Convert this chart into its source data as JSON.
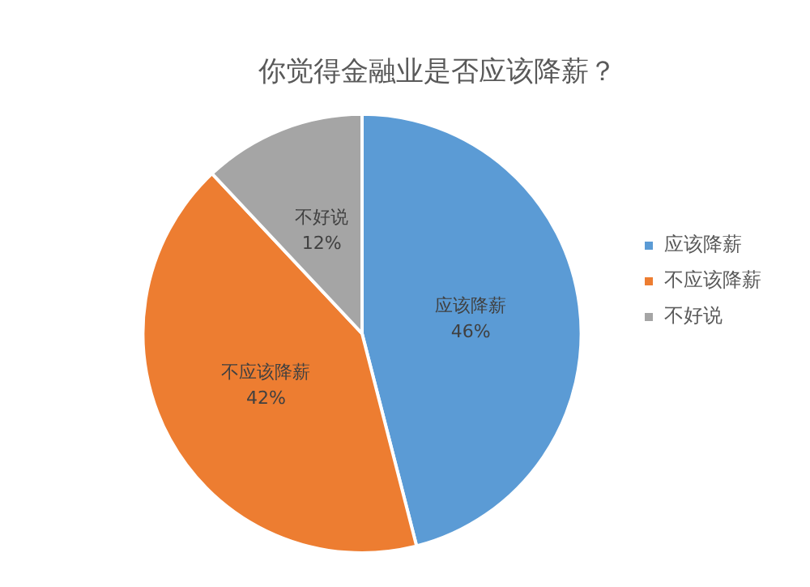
{
  "chart_data": {
    "type": "pie",
    "title": "你觉得金融业是否应该降薪？",
    "categories": [
      "应该降薪",
      "不应该降薪",
      "不好说"
    ],
    "values": [
      46,
      42,
      12
    ],
    "colors": [
      "#5b9bd5",
      "#ed7d31",
      "#a5a5a5"
    ],
    "value_labels": [
      "46%",
      "42%",
      "12%"
    ],
    "legend": "right"
  }
}
